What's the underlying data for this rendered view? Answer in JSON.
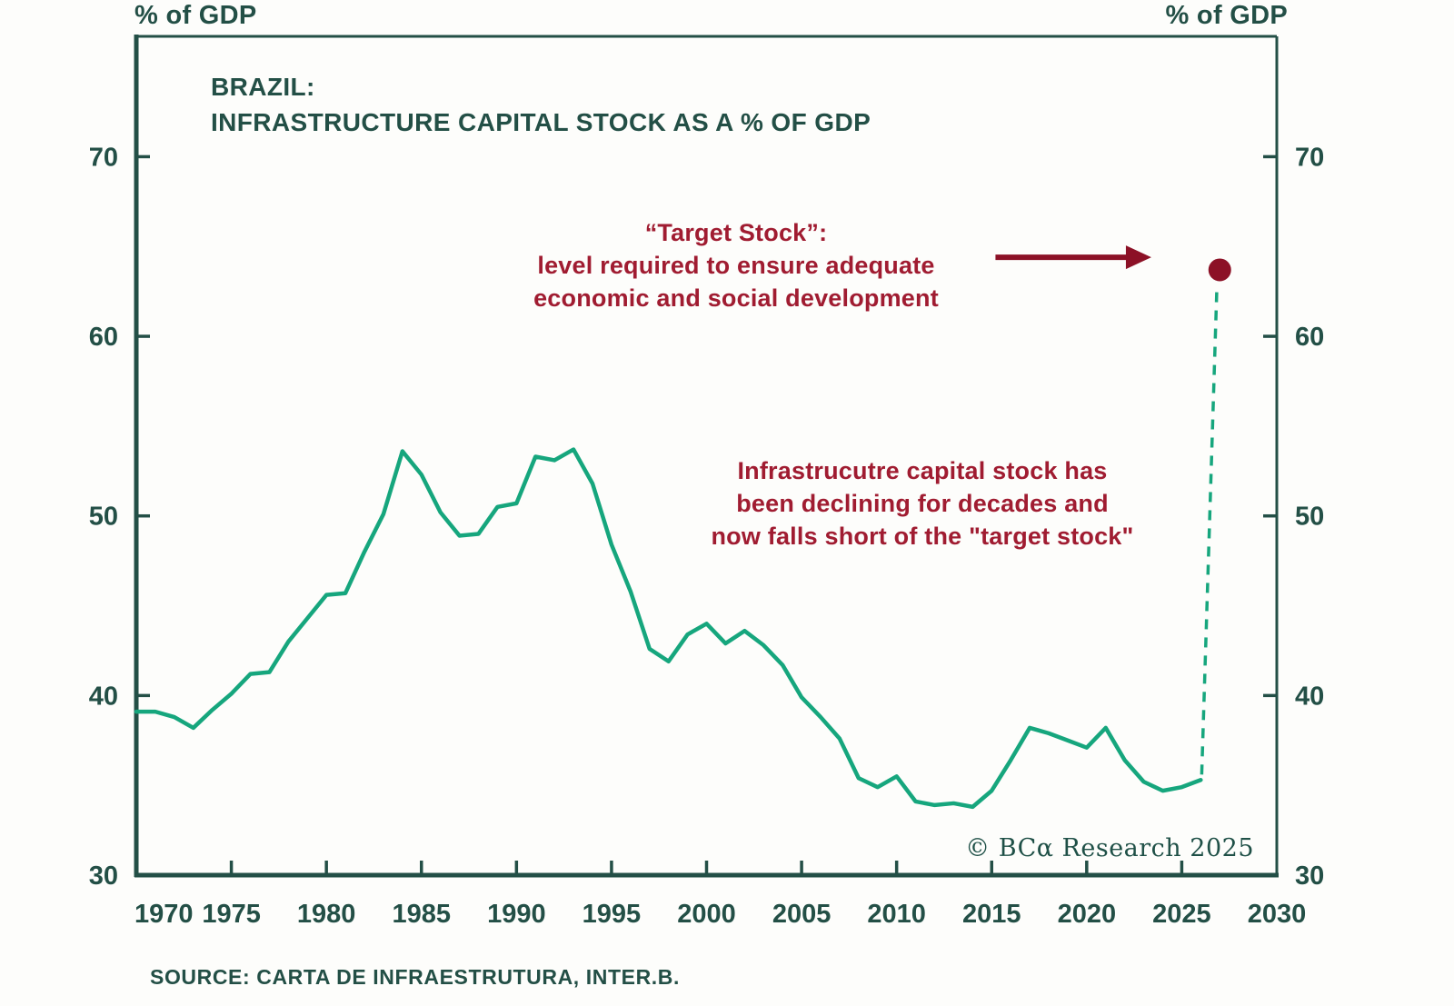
{
  "page": {
    "y_axis_label_left": "% of GDP",
    "y_axis_label_right": "% of GDP",
    "copyright": "© BCα Research 2025",
    "source": "SOURCE: CARTA DE INFRAESTRUTURA, INTER.B."
  },
  "chart_data": {
    "type": "line",
    "title_line1": "BRAZIL:",
    "title_line2": "INFRASTRUCTURE CAPITAL STOCK AS A % OF GDP",
    "xlabel": "",
    "ylabel": "% of GDP",
    "xlim": [
      1970,
      2030
    ],
    "ylim": [
      30,
      76.7
    ],
    "x_ticks": [
      1970,
      1975,
      1980,
      1985,
      1990,
      1995,
      2000,
      2005,
      2010,
      2015,
      2020,
      2025,
      2030
    ],
    "y_ticks": [
      30,
      40,
      50,
      60,
      70
    ],
    "grid": false,
    "legend": "none",
    "x": [
      1970,
      1971,
      1972,
      1973,
      1974,
      1975,
      1976,
      1977,
      1978,
      1979,
      1980,
      1981,
      1982,
      1983,
      1984,
      1985,
      1986,
      1987,
      1988,
      1989,
      1990,
      1991,
      1992,
      1993,
      1994,
      1995,
      1996,
      1997,
      1998,
      1999,
      2000,
      2001,
      2002,
      2003,
      2004,
      2005,
      2006,
      2007,
      2008,
      2009,
      2010,
      2011,
      2012,
      2013,
      2014,
      2015,
      2016,
      2017,
      2018,
      2019,
      2020,
      2021,
      2022,
      2023,
      2024,
      2025,
      2026
    ],
    "series": [
      {
        "name": "Infrastructure capital stock (% of GDP)",
        "values": [
          39.1,
          39.1,
          38.8,
          38.2,
          39.2,
          40.1,
          41.2,
          41.3,
          43.0,
          44.3,
          45.6,
          45.7,
          48.0,
          50.1,
          53.6,
          52.3,
          50.2,
          48.9,
          49.0,
          50.5,
          50.7,
          53.3,
          53.1,
          53.7,
          51.8,
          48.4,
          45.8,
          42.6,
          41.9,
          43.4,
          44.0,
          42.9,
          43.6,
          42.8,
          41.7,
          39.9,
          38.8,
          37.6,
          35.4,
          34.9,
          35.5,
          34.1,
          33.9,
          34.0,
          33.8,
          34.7,
          36.4,
          38.2,
          37.9,
          37.5,
          37.1,
          38.2,
          36.4,
          35.2,
          34.7,
          34.9,
          35.3
        ]
      }
    ],
    "target_point": {
      "year": 2027,
      "value": 63.7
    },
    "target_connector": {
      "from": [
        2026.05,
        35.6
      ],
      "to": [
        2026.85,
        62.8
      ],
      "style": "dashed"
    },
    "arrow": {
      "from": [
        2015.2,
        64.4
      ],
      "to": [
        2023.4,
        64.4
      ]
    },
    "annotations": [
      {
        "name": "target-stock-note",
        "lines": [
          "“Target Stock”:",
          "level required to ensure adequate",
          "economic and social development"
        ]
      },
      {
        "name": "decline-note",
        "lines": [
          "Infrastrucutre capital stock has",
          "been declining for decades and",
          "now falls short of the \"target stock\""
        ]
      }
    ],
    "colors": {
      "line": "#16a67d",
      "axis": "#234f46",
      "text": "#234f46",
      "annotation": "#a01c31",
      "marker": "#8c1126"
    }
  }
}
